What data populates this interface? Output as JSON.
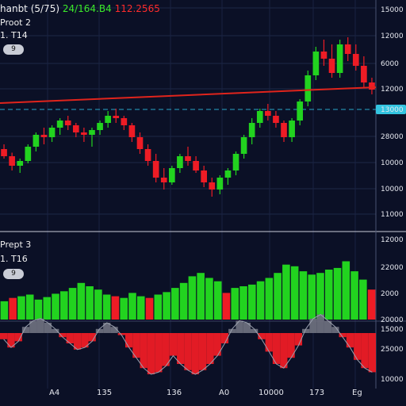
{
  "header": {
    "symbol": "hanbt (5/75)",
    "value_green": "24/164.B4",
    "value_red": "112.2565",
    "study1": "Proot 2",
    "study1_sub": "1. T14",
    "pill1": "9"
  },
  "lower": {
    "study": "Prept 3",
    "study_sub": "1. T16",
    "pill": "9"
  },
  "price_axis": [
    "15000",
    "12000",
    "6000",
    "12000",
    "28000",
    "10000",
    "10000",
    "11000"
  ],
  "price_highlight": "13000",
  "volume_axis": [
    "12000",
    "22000",
    "2000",
    "20000"
  ],
  "osc_axis": [
    "15000",
    "25000",
    "10000"
  ],
  "x_axis": [
    "A4",
    "135",
    "136",
    "A0",
    "10000",
    "173",
    "Eg"
  ],
  "colors": {
    "up": "#22d31f",
    "down": "#ee1c25",
    "bg": "#0b1026",
    "accent": "#33c4e0"
  },
  "chart_data": [
    {
      "type": "candlestick",
      "series": [
        {
          "values": [
            [
              58,
              62,
              50,
              52
            ],
            [
              52,
              55,
              40,
              44
            ],
            [
              44,
              50,
              38,
              48
            ],
            [
              48,
              62,
              46,
              60
            ],
            [
              60,
              72,
              56,
              70
            ],
            [
              70,
              76,
              62,
              68
            ],
            [
              68,
              78,
              64,
              76
            ],
            [
              76,
              84,
              70,
              82
            ],
            [
              82,
              86,
              74,
              78
            ],
            [
              78,
              80,
              68,
              72
            ],
            [
              72,
              76,
              64,
              70
            ],
            [
              70,
              76,
              60,
              74
            ],
            [
              74,
              82,
              70,
              80
            ],
            [
              80,
              90,
              76,
              86
            ],
            [
              86,
              92,
              80,
              84
            ],
            [
              84,
              86,
              74,
              78
            ],
            [
              78,
              80,
              64,
              68
            ],
            [
              68,
              72,
              54,
              58
            ],
            [
              58,
              62,
              44,
              48
            ],
            [
              48,
              54,
              30,
              34
            ],
            [
              34,
              42,
              24,
              30
            ],
            [
              30,
              44,
              28,
              42
            ],
            [
              42,
              54,
              38,
              52
            ],
            [
              52,
              60,
              44,
              48
            ],
            [
              48,
              52,
              38,
              40
            ],
            [
              40,
              44,
              26,
              30
            ],
            [
              30,
              34,
              18,
              24
            ],
            [
              24,
              36,
              20,
              34
            ],
            [
              34,
              42,
              28,
              40
            ],
            [
              40,
              56,
              36,
              54
            ],
            [
              54,
              70,
              50,
              68
            ],
            [
              68,
              84,
              62,
              80
            ],
            [
              80,
              92,
              76,
              90
            ],
            [
              90,
              96,
              82,
              86
            ],
            [
              86,
              90,
              76,
              80
            ],
            [
              80,
              82,
              64,
              68
            ],
            [
              68,
              84,
              64,
              82
            ],
            [
              82,
              100,
              78,
              98
            ],
            [
              98,
              124,
              94,
              120
            ],
            [
              120,
              144,
              116,
              140
            ],
            [
              140,
              150,
              128,
              134
            ],
            [
              134,
              146,
              118,
              122
            ],
            [
              122,
              150,
              118,
              146
            ],
            [
              146,
              152,
              132,
              138
            ],
            [
              138,
              146,
              124,
              128
            ],
            [
              128,
              136,
              110,
              114
            ],
            [
              114,
              118,
              104,
              108
            ]
          ]
        }
      ],
      "trendline": "red",
      "highlight_value": "13000"
    },
    {
      "type": "bar",
      "series": [
        {
          "values": [
            {
              "v": 22,
              "c": "green"
            },
            {
              "v": 26,
              "c": "red"
            },
            {
              "v": 28,
              "c": "green"
            },
            {
              "v": 30,
              "c": "green"
            },
            {
              "v": 24,
              "c": "green"
            },
            {
              "v": 27,
              "c": "green"
            },
            {
              "v": 31,
              "c": "green"
            },
            {
              "v": 34,
              "c": "green"
            },
            {
              "v": 38,
              "c": "green"
            },
            {
              "v": 44,
              "c": "green"
            },
            {
              "v": 40,
              "c": "green"
            },
            {
              "v": 36,
              "c": "green"
            },
            {
              "v": 30,
              "c": "green"
            },
            {
              "v": 28,
              "c": "red"
            },
            {
              "v": 26,
              "c": "green"
            },
            {
              "v": 32,
              "c": "green"
            },
            {
              "v": 28,
              "c": "green"
            },
            {
              "v": 26,
              "c": "red"
            },
            {
              "v": 30,
              "c": "green"
            },
            {
              "v": 33,
              "c": "green"
            },
            {
              "v": 38,
              "c": "green"
            },
            {
              "v": 44,
              "c": "green"
            },
            {
              "v": 52,
              "c": "green"
            },
            {
              "v": 56,
              "c": "green"
            },
            {
              "v": 50,
              "c": "green"
            },
            {
              "v": 46,
              "c": "green"
            },
            {
              "v": 32,
              "c": "red"
            },
            {
              "v": 38,
              "c": "green"
            },
            {
              "v": 40,
              "c": "green"
            },
            {
              "v": 42,
              "c": "green"
            },
            {
              "v": 46,
              "c": "green"
            },
            {
              "v": 50,
              "c": "green"
            },
            {
              "v": 56,
              "c": "green"
            },
            {
              "v": 66,
              "c": "green"
            },
            {
              "v": 64,
              "c": "green"
            },
            {
              "v": 58,
              "c": "green"
            },
            {
              "v": 54,
              "c": "green"
            },
            {
              "v": 56,
              "c": "green"
            },
            {
              "v": 60,
              "c": "green"
            },
            {
              "v": 62,
              "c": "green"
            },
            {
              "v": 70,
              "c": "green"
            },
            {
              "v": 58,
              "c": "green"
            },
            {
              "v": 48,
              "c": "green"
            },
            {
              "v": 36,
              "c": "red"
            }
          ]
        }
      ]
    },
    {
      "type": "bar",
      "series": [
        {
          "values": [
            -6,
            -14,
            -8,
            6,
            12,
            14,
            10,
            4,
            -4,
            -10,
            -16,
            -14,
            -8,
            4,
            10,
            6,
            -2,
            -14,
            -24,
            -34,
            -40,
            -38,
            -32,
            -22,
            -30,
            -36,
            -40,
            -36,
            -30,
            -22,
            -10,
            4,
            12,
            10,
            4,
            -6,
            -18,
            -30,
            -34,
            -24,
            -12,
            4,
            14,
            18,
            12,
            6,
            -4,
            -14,
            -26,
            -34,
            -38
          ]
        }
      ]
    }
  ]
}
